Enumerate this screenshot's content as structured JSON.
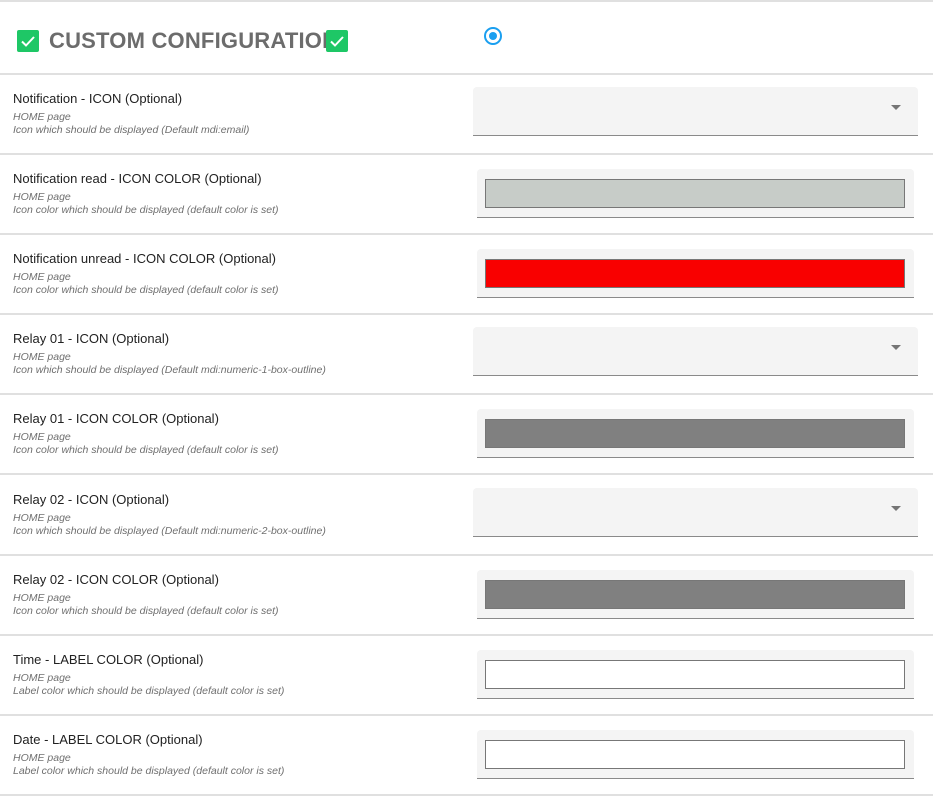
{
  "header": {
    "title": "CUSTOM CONFIGURATION",
    "check_icon": "check-box-icon",
    "check_color": "#1ec766",
    "radio_selected": true,
    "radio_color": "#1a9ff0"
  },
  "rows": [
    {
      "label": "Notification - ICON (Optional)",
      "page": "HOME page",
      "desc": "Icon which should be displayed (Default mdi:email)",
      "type": "select",
      "value": ""
    },
    {
      "label": "Notification read - ICON COLOR (Optional)",
      "page": "HOME page",
      "desc": "Icon color which should be displayed (default color is set)",
      "type": "color",
      "value": "#c7ccc8"
    },
    {
      "label": "Notification unread - ICON COLOR (Optional)",
      "page": "HOME page",
      "desc": "Icon color which should be displayed (default color is set)",
      "type": "color",
      "value": "#f90000"
    },
    {
      "label": "Relay 01 - ICON (Optional)",
      "page": "HOME page",
      "desc": "Icon which should be displayed (Default mdi:numeric-1-box-outline)",
      "type": "select",
      "value": ""
    },
    {
      "label": "Relay 01 - ICON COLOR (Optional)",
      "page": "HOME page",
      "desc": "Icon color which should be displayed (default color is set)",
      "type": "color",
      "value": "#808080"
    },
    {
      "label": "Relay 02 - ICON (Optional)",
      "page": "HOME page",
      "desc": "Icon which should be displayed (Default mdi:numeric-2-box-outline)",
      "type": "select",
      "value": ""
    },
    {
      "label": "Relay 02 - ICON COLOR (Optional)",
      "page": "HOME page",
      "desc": "Icon color which should be displayed (default color is set)",
      "type": "color",
      "value": "#808080"
    },
    {
      "label": "Time - LABEL COLOR (Optional)",
      "page": "HOME page",
      "desc": "Label color which should be displayed (default color is set)",
      "type": "color",
      "value": "#ffffff"
    },
    {
      "label": "Date - LABEL COLOR (Optional)",
      "page": "HOME page",
      "desc": "Label color which should be displayed (default color is set)",
      "type": "color",
      "value": "#ffffff"
    }
  ]
}
